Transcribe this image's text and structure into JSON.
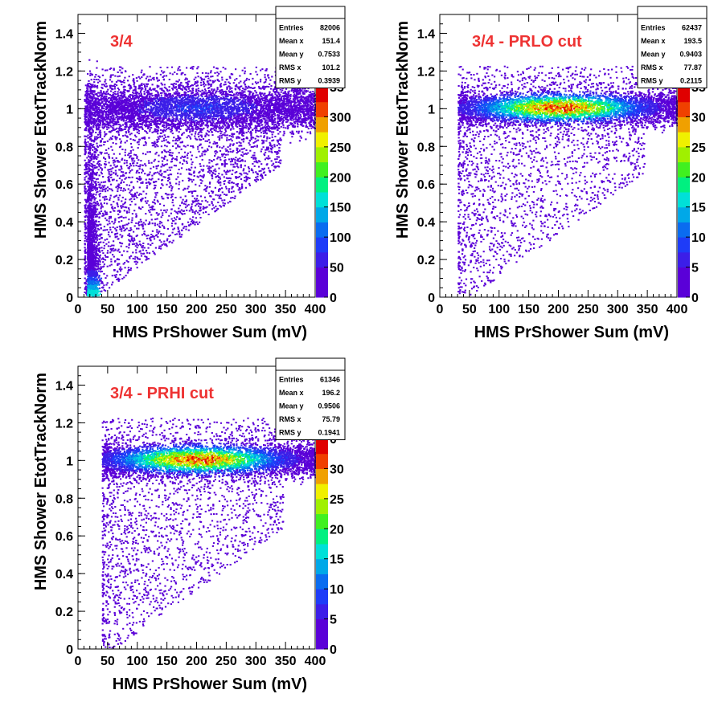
{
  "colors": {
    "title": "#ee3333",
    "axis": "#000000",
    "palette": [
      "#5a00d8",
      "#3c1ee8",
      "#1e3cf8",
      "#0a6cf0",
      "#00a8e8",
      "#00e0d8",
      "#00f080",
      "#40f020",
      "#a0f000",
      "#f0f000",
      "#f0a000",
      "#f04000",
      "#e00000"
    ]
  },
  "chart_data": [
    {
      "type": "heatmap",
      "title": "3/4",
      "xlabel": "HMS PrShower Sum (mV)",
      "ylabel": "HMS Shower EtotTrackNorm",
      "xlim": [
        0,
        400
      ],
      "ylim": [
        0,
        1.5
      ],
      "x_ticks": [
        "0",
        "50",
        "100",
        "150",
        "200",
        "250",
        "300",
        "350",
        "400"
      ],
      "y_ticks": [
        "0",
        "0.2",
        "0.4",
        "0.6",
        "0.8",
        "1",
        "1.2",
        "1.4"
      ],
      "z_ticks": [
        "0",
        "50",
        "100",
        "150",
        "200",
        "250",
        "300"
      ],
      "zlim": [
        0,
        350
      ],
      "stats": {
        "Entries": "82006",
        "Mean x": "151.4",
        "Mean y": "0.7533",
        "RMS x": "101.2",
        "RMS y": "0.3939"
      },
      "band": {
        "x_start": 10,
        "x_end": 400,
        "y_center": 1.0,
        "y_width": 0.06,
        "peak_x": 200,
        "peak_z": 80
      },
      "low_cluster": {
        "x": 15,
        "y": 0.02,
        "peak_z": 130
      }
    },
    {
      "type": "heatmap",
      "title": "3/4 - PRLO cut",
      "xlabel": "HMS PrShower Sum (mV)",
      "ylabel": "HMS Shower EtotTrackNorm",
      "xlim": [
        0,
        400
      ],
      "ylim": [
        0,
        1.5
      ],
      "x_ticks": [
        "0",
        "50",
        "100",
        "150",
        "200",
        "250",
        "300",
        "350",
        "400"
      ],
      "y_ticks": [
        "0",
        "0.2",
        "0.4",
        "0.6",
        "0.8",
        "1",
        "1.2",
        "1.4"
      ],
      "z_ticks": [
        "0",
        "5",
        "10",
        "15",
        "20",
        "25",
        "30"
      ],
      "zlim": [
        0,
        35
      ],
      "stats": {
        "Entries": "62437",
        "Mean x": "193.5",
        "Mean y": "0.9403",
        "RMS x": "77.87",
        "RMS y": "0.2115"
      },
      "band": {
        "x_start": 30,
        "x_end": 400,
        "y_center": 1.0,
        "y_width": 0.045,
        "peak_x": 200,
        "peak_z": 34
      }
    },
    {
      "type": "heatmap",
      "title": "3/4 - PRHI cut",
      "xlabel": "HMS PrShower Sum (mV)",
      "ylabel": "HMS Shower EtotTrackNorm",
      "xlim": [
        0,
        400
      ],
      "ylim": [
        0,
        1.5
      ],
      "x_ticks": [
        "0",
        "50",
        "100",
        "150",
        "200",
        "250",
        "300",
        "350",
        "400"
      ],
      "y_ticks": [
        "0",
        "0.2",
        "0.4",
        "0.6",
        "0.8",
        "1",
        "1.2",
        "1.4"
      ],
      "z_ticks": [
        "0",
        "5",
        "10",
        "15",
        "20",
        "25",
        "30"
      ],
      "zlim": [
        0,
        35
      ],
      "stats": {
        "Entries": "61346",
        "Mean x": "196.2",
        "Mean y": "0.9506",
        "RMS x": "75.79",
        "RMS y": "0.1941"
      },
      "band": {
        "x_start": 40,
        "x_end": 400,
        "y_center": 1.0,
        "y_width": 0.045,
        "peak_x": 200,
        "peak_z": 34
      }
    }
  ],
  "partial_labels": {
    "z_top_1": "35",
    "z_top_2": "35",
    "z_top_3": "0"
  }
}
